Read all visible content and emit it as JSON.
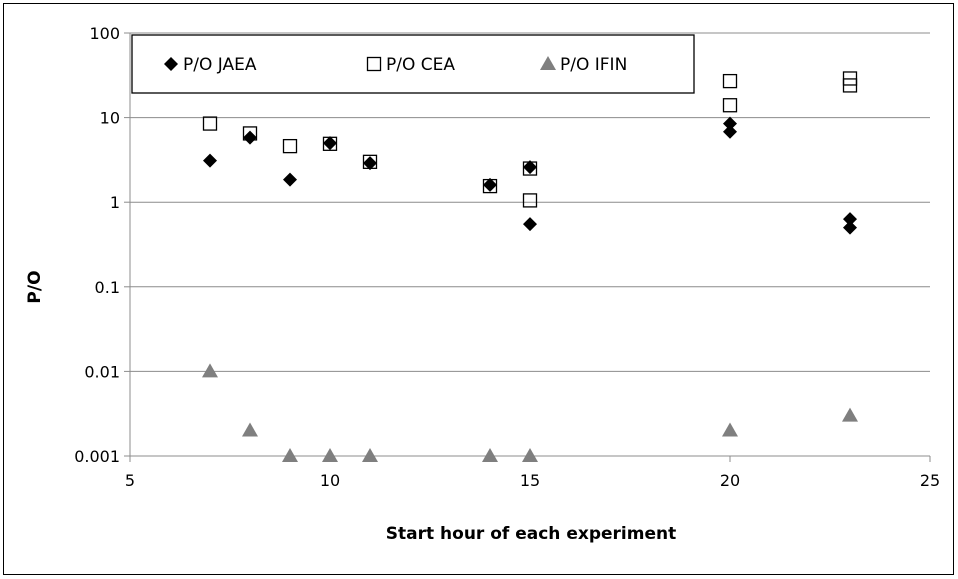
{
  "chart_data": {
    "type": "scatter",
    "xlabel": "Start hour of each experiment",
    "ylabel": "P/O",
    "xlim": [
      5,
      25
    ],
    "ylim": [
      0.001,
      100
    ],
    "y_scale": "log",
    "grid": "horizontal",
    "legend_position": "top-left inside plot",
    "x_ticks": [
      "5",
      "10",
      "15",
      "20",
      "25"
    ],
    "y_ticks": [
      "0.001",
      "0.01",
      "0.1",
      "1",
      "10",
      "100"
    ],
    "series": [
      {
        "name": "P/O JAEA",
        "marker": "filled-diamond",
        "color": "#000000",
        "points": [
          [
            7,
            3.1
          ],
          [
            8,
            5.8
          ],
          [
            9,
            1.85
          ],
          [
            10,
            5.0
          ],
          [
            11,
            2.9
          ],
          [
            14,
            1.6
          ],
          [
            15,
            2.6
          ],
          [
            15,
            0.55
          ],
          [
            20,
            8.5
          ],
          [
            20,
            6.8
          ],
          [
            23,
            0.63
          ],
          [
            23,
            0.5
          ]
        ]
      },
      {
        "name": "P/O CEA",
        "marker": "open-square",
        "color": "#000000",
        "points": [
          [
            7,
            8.5
          ],
          [
            8,
            6.5
          ],
          [
            9,
            4.6
          ],
          [
            10,
            4.9
          ],
          [
            11,
            3.0
          ],
          [
            14,
            1.55
          ],
          [
            15,
            2.5
          ],
          [
            15,
            1.05
          ],
          [
            20,
            27
          ],
          [
            20,
            14
          ],
          [
            23,
            29
          ],
          [
            23,
            24
          ]
        ]
      },
      {
        "name": "P/O IFIN",
        "marker": "filled-triangle",
        "color": "#7f7f7f",
        "points": [
          [
            7,
            0.01
          ],
          [
            8,
            0.002
          ],
          [
            9,
            0.001
          ],
          [
            10,
            0.001
          ],
          [
            11,
            0.001
          ],
          [
            14,
            0.001
          ],
          [
            15,
            0.001
          ],
          [
            20,
            0.002
          ],
          [
            23,
            0.003
          ]
        ]
      }
    ]
  }
}
